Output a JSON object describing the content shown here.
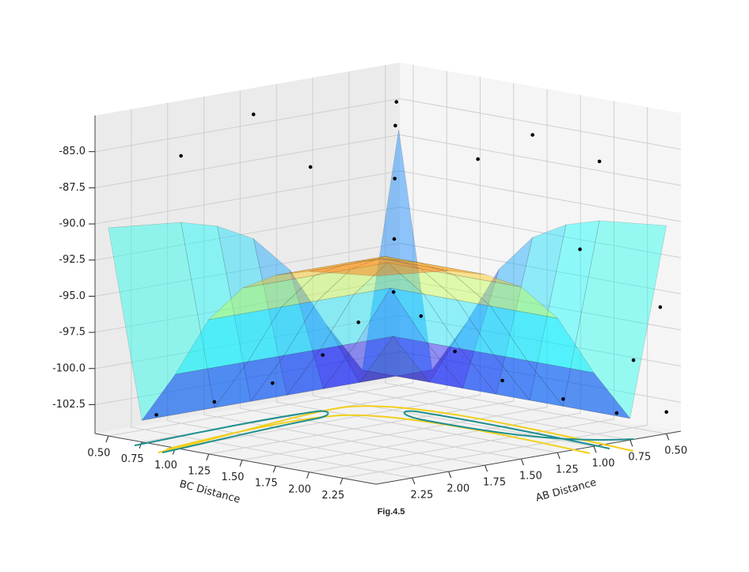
{
  "chart_data": {
    "type": "surface3d",
    "xlabel": "BC Distance",
    "ylabel": "AB Distance",
    "caption": "Fig.4.5",
    "xlim": [
      0.4,
      2.5
    ],
    "ylim": [
      0.4,
      2.5
    ],
    "zlim": [
      -104.5,
      -82.5
    ],
    "xticks": [
      {
        "value": 0.5,
        "label": "0.50"
      },
      0.75,
      {
        "value": 1.0,
        "label": "1.00"
      },
      1.25,
      {
        "value": 1.5,
        "label": "1.50"
      },
      1.75,
      {
        "value": 2.0,
        "label": "2.00"
      },
      2.25
    ],
    "yticks": [
      {
        "value": 0.5,
        "label": "0.50"
      },
      0.75,
      {
        "value": 1.0,
        "label": "1.00"
      },
      1.25,
      {
        "value": 1.5,
        "label": "1.50"
      },
      1.75,
      {
        "value": 2.0,
        "label": "2.00"
      },
      2.25
    ],
    "zticks": [
      -102.5,
      {
        "value": -100,
        "label": "-100.0"
      },
      -97.5,
      {
        "value": -95,
        "label": "-95.0"
      },
      -92.5,
      {
        "value": -90,
        "label": "-90.0"
      },
      -87.5,
      {
        "value": -85,
        "label": "-85.0"
      }
    ],
    "grid": true,
    "surface": {
      "cmap": "jet",
      "alpha": 0.42,
      "x": [
        0.5,
        0.75,
        1.0,
        1.25,
        1.5,
        1.75,
        2.0,
        2.5
      ],
      "y": [
        0.5,
        0.75,
        1.0,
        1.25,
        1.5,
        1.75,
        2.0,
        2.5
      ],
      "z": [
        [
          -86.8,
          -103.0,
          -99.4,
          -95.2,
          -92.6,
          -91.3,
          -90.6,
          -90.1
        ],
        [
          -103.0,
          -103.0,
          -103.0,
          -103.0,
          -103.0,
          -103.0,
          -103.0,
          -103.0
        ],
        [
          -99.4,
          -103.0,
          -99.4,
          -99.4,
          -99.4,
          -99.4,
          -99.4,
          -99.4
        ],
        [
          -95.2,
          -103.0,
          -99.4,
          -95.2,
          -95.2,
          -95.2,
          -95.2,
          -95.2
        ],
        [
          -92.6,
          -103.0,
          -99.4,
          -95.2,
          -92.6,
          -92.6,
          -92.6,
          -92.6
        ],
        [
          -91.3,
          -103.0,
          -99.4,
          -95.2,
          -92.6,
          -91.3,
          -91.3,
          -91.3
        ],
        [
          -90.6,
          -103.0,
          -99.4,
          -95.2,
          -92.6,
          -91.3,
          -90.6,
          -90.6
        ],
        [
          -90.1,
          -103.0,
          -99.4,
          -95.2,
          -92.6,
          -91.3,
          -90.6,
          -90.1
        ]
      ]
    },
    "scatter": {
      "color": "#000000",
      "x": [
        0.75,
        0.75,
        0.75,
        0.8,
        0.85,
        0.95,
        2.4,
        2.0,
        1.6,
        1.3,
        1.1,
        0.9,
        0.85,
        0.8,
        0.7,
        0.5,
        0.5,
        1.5,
        2.0,
        0.6,
        1.2,
        2.4,
        2.2,
        1.8,
        2.5
      ],
      "y": [
        2.4,
        2.0,
        1.6,
        1.3,
        1.1,
        0.95,
        0.75,
        0.75,
        0.8,
        0.85,
        0.9,
        0.9,
        0.85,
        0.8,
        0.7,
        1.5,
        2.0,
        0.5,
        0.5,
        1.2,
        0.6,
        0.45,
        0.45,
        0.45,
        0.5
      ],
      "z": [
        -102.8,
        -102.6,
        -102.0,
        -100.5,
        -98.5,
        -96.5,
        -102.8,
        -102.5,
        -101.8,
        -100.2,
        -98.0,
        -93.0,
        -89.0,
        -85.5,
        -84.2,
        -84.0,
        -86.0,
        -85.5,
        -86.5,
        -88.0,
        -87.5,
        -96.0,
        -100.0,
        -93.0,
        -103.0
      ]
    }
  }
}
